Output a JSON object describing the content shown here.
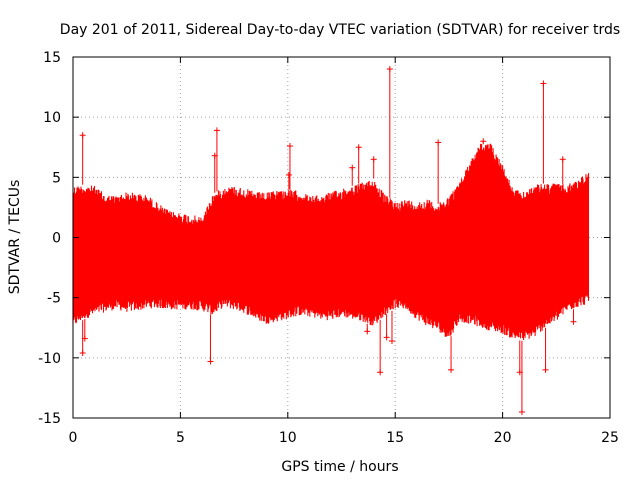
{
  "chart_data": {
    "type": "scatter",
    "title": "Day 201 of 2011, Sidereal Day-to-day VTEC variation (SDTVAR) for receiver trds",
    "xlabel": "GPS time / hours",
    "ylabel": "SDTVAR / TECUs",
    "xlim": [
      0,
      25
    ],
    "ylim": [
      -15,
      15
    ],
    "x_ticks": [
      0,
      5,
      10,
      15,
      20,
      25
    ],
    "y_ticks": [
      -15,
      -10,
      -5,
      0,
      5,
      10,
      15
    ],
    "grid": true,
    "series_color": "#ff0000",
    "marker": "+",
    "series": [
      {
        "name": "SDTVAR",
        "envelope": {
          "x": [
            0.0,
            0.5,
            1.0,
            1.5,
            2.0,
            2.5,
            3.0,
            3.5,
            4.0,
            4.5,
            5.0,
            5.5,
            6.0,
            6.5,
            7.0,
            7.5,
            8.0,
            8.5,
            9.0,
            9.5,
            10.0,
            10.5,
            11.0,
            11.5,
            12.0,
            12.5,
            13.0,
            13.5,
            14.0,
            14.5,
            15.0,
            15.5,
            16.0,
            16.5,
            17.0,
            17.5,
            18.0,
            18.5,
            19.0,
            19.5,
            20.0,
            20.5,
            21.0,
            21.5,
            22.0,
            22.5,
            23.0,
            23.5,
            24.0
          ],
          "upper": [
            4.3,
            4.4,
            4.3,
            3.6,
            3.5,
            3.8,
            3.7,
            3.5,
            2.8,
            2.2,
            2.1,
            1.9,
            1.7,
            3.6,
            4.2,
            4.3,
            4.1,
            3.8,
            3.7,
            4.0,
            4.0,
            3.9,
            3.5,
            3.5,
            3.8,
            4.0,
            4.3,
            4.6,
            4.9,
            3.6,
            3.0,
            3.2,
            3.0,
            3.2,
            2.8,
            3.5,
            4.6,
            6.5,
            7.9,
            7.8,
            6.1,
            4.0,
            3.8,
            4.4,
            4.5,
            4.5,
            4.4,
            4.8,
            5.6
          ],
          "lower": [
            -7.5,
            -6.8,
            -6.5,
            -6.2,
            -6.0,
            -6.2,
            -6.1,
            -5.9,
            -5.9,
            -6.0,
            -6.0,
            -6.0,
            -6.1,
            -6.5,
            -5.8,
            -6.0,
            -6.3,
            -6.8,
            -7.2,
            -7.0,
            -6.8,
            -6.5,
            -6.6,
            -6.8,
            -6.9,
            -6.6,
            -6.8,
            -7.0,
            -7.4,
            -6.5,
            -5.9,
            -6.0,
            -6.8,
            -7.4,
            -7.8,
            -8.5,
            -7.0,
            -7.2,
            -7.5,
            -7.8,
            -8.0,
            -8.5,
            -8.6,
            -8.3,
            -7.5,
            -7.0,
            -6.2,
            -5.8,
            -5.5
          ]
        },
        "outliers": [
          {
            "x": 0.45,
            "y": 8.5
          },
          {
            "x": 0.45,
            "y": -9.6
          },
          {
            "x": 0.55,
            "y": -8.4
          },
          {
            "x": 6.4,
            "y": -10.3
          },
          {
            "x": 6.7,
            "y": 8.9
          },
          {
            "x": 6.6,
            "y": 6.8
          },
          {
            "x": 10.1,
            "y": 7.6
          },
          {
            "x": 10.05,
            "y": 5.2
          },
          {
            "x": 12.6,
            "y": 3.0
          },
          {
            "x": 13.0,
            "y": 5.8
          },
          {
            "x": 13.3,
            "y": 7.5
          },
          {
            "x": 13.7,
            "y": -7.8
          },
          {
            "x": 14.0,
            "y": 6.5
          },
          {
            "x": 14.3,
            "y": -11.2
          },
          {
            "x": 14.6,
            "y": -8.3
          },
          {
            "x": 14.75,
            "y": 14.0
          },
          {
            "x": 14.85,
            "y": -8.6
          },
          {
            "x": 17.0,
            "y": 7.9
          },
          {
            "x": 17.6,
            "y": -11.0
          },
          {
            "x": 19.1,
            "y": 8.0
          },
          {
            "x": 20.8,
            "y": -11.2
          },
          {
            "x": 20.9,
            "y": -14.5
          },
          {
            "x": 21.9,
            "y": 12.8
          },
          {
            "x": 22.0,
            "y": -11.0
          },
          {
            "x": 22.8,
            "y": 6.5
          },
          {
            "x": 23.3,
            "y": -7.0
          }
        ]
      }
    ]
  }
}
